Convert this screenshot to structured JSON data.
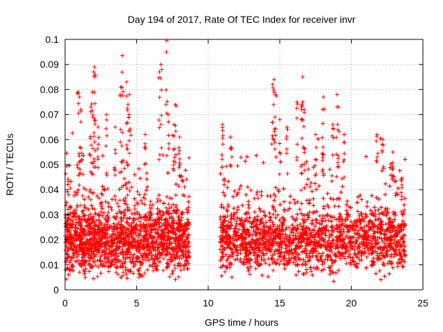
{
  "chart_data": {
    "type": "scatter",
    "title": "Day 194 of 2017, Rate Of TEC Index for receiver invr",
    "xlabel": "GPS time / hours",
    "ylabel": "ROTI / TECUs",
    "xlim": [
      0,
      25
    ],
    "ylim": [
      0,
      0.1
    ],
    "x_ticks": [
      0,
      5,
      10,
      15,
      20,
      25
    ],
    "x_tick_labels": [
      "0",
      "5",
      "10",
      "15",
      "20",
      "25"
    ],
    "y_ticks": [
      0,
      0.01,
      0.02,
      0.03,
      0.04,
      0.05,
      0.06,
      0.07,
      0.08,
      0.09,
      0.1
    ],
    "y_tick_labels": [
      "0",
      "0.01",
      "0.02",
      "0.03",
      "0.04",
      "0.05",
      "0.06",
      "0.07",
      "0.08",
      "0.09",
      "0.1"
    ],
    "grid": true,
    "marker": "+",
    "marker_color": "#ff0000",
    "grid_color": "#a0a0a0",
    "series": [
      {
        "name": "ROTI",
        "segments": [
          {
            "x_range": [
              0.0,
              8.7
            ],
            "typical": 0.02,
            "spread": 0.012,
            "min": 0.004,
            "density": 2600
          },
          {
            "x_range": [
              10.8,
              23.8
            ],
            "typical": 0.02,
            "spread": 0.011,
            "min": 0.003,
            "density": 3600
          }
        ],
        "outliers": [
          {
            "x": 0.9,
            "y": 0.079
          },
          {
            "x": 1.0,
            "y": 0.077
          },
          {
            "x": 1.1,
            "y": 0.072
          },
          {
            "x": 1.8,
            "y": 0.073
          },
          {
            "x": 1.9,
            "y": 0.079
          },
          {
            "x": 2.0,
            "y": 0.087
          },
          {
            "x": 2.05,
            "y": 0.089
          },
          {
            "x": 2.1,
            "y": 0.086
          },
          {
            "x": 2.3,
            "y": 0.065
          },
          {
            "x": 2.9,
            "y": 0.07
          },
          {
            "x": 3.5,
            "y": 0.065
          },
          {
            "x": 3.9,
            "y": 0.081
          },
          {
            "x": 4.0,
            "y": 0.0935
          },
          {
            "x": 4.3,
            "y": 0.083
          },
          {
            "x": 4.4,
            "y": 0.074
          },
          {
            "x": 4.5,
            "y": 0.078
          },
          {
            "x": 5.6,
            "y": 0.062
          },
          {
            "x": 6.6,
            "y": 0.087
          },
          {
            "x": 6.7,
            "y": 0.09
          },
          {
            "x": 7.1,
            "y": 0.0995
          },
          {
            "x": 7.2,
            "y": 0.07
          },
          {
            "x": 7.6,
            "y": 0.066
          },
          {
            "x": 7.7,
            "y": 0.074
          },
          {
            "x": 8.0,
            "y": 0.061
          },
          {
            "x": 11.0,
            "y": 0.066
          },
          {
            "x": 11.6,
            "y": 0.057
          },
          {
            "x": 14.5,
            "y": 0.082
          },
          {
            "x": 14.6,
            "y": 0.084
          },
          {
            "x": 14.7,
            "y": 0.078
          },
          {
            "x": 15.0,
            "y": 0.068
          },
          {
            "x": 15.5,
            "y": 0.065
          },
          {
            "x": 16.2,
            "y": 0.075
          },
          {
            "x": 16.5,
            "y": 0.073
          },
          {
            "x": 16.6,
            "y": 0.085
          },
          {
            "x": 16.7,
            "y": 0.072
          },
          {
            "x": 17.5,
            "y": 0.062
          },
          {
            "x": 18.0,
            "y": 0.072
          },
          {
            "x": 18.05,
            "y": 0.077
          },
          {
            "x": 18.7,
            "y": 0.066
          },
          {
            "x": 19.0,
            "y": 0.078
          },
          {
            "x": 19.1,
            "y": 0.073
          },
          {
            "x": 19.5,
            "y": 0.062
          },
          {
            "x": 21.8,
            "y": 0.062
          },
          {
            "x": 22.2,
            "y": 0.06
          },
          {
            "x": 22.9,
            "y": 0.055
          },
          {
            "x": 23.5,
            "y": 0.036
          }
        ]
      }
    ]
  }
}
